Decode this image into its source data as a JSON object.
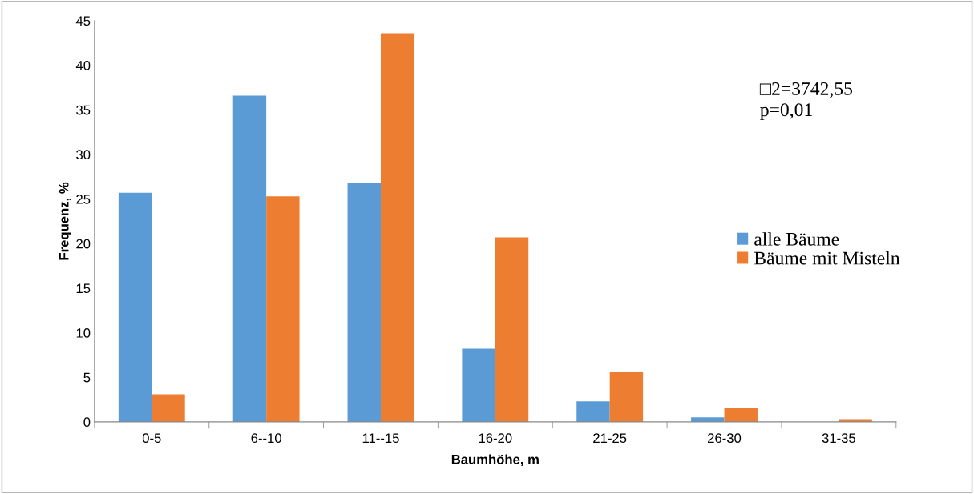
{
  "chart_data": {
    "type": "bar",
    "xlabel": "Baumhöhe, m",
    "ylabel": "Frequenz, %",
    "categories": [
      "0-5",
      "6--10",
      "11--15",
      "16-20",
      "21-25",
      "26-30",
      "31-35"
    ],
    "series": [
      {
        "name": "alle Bäume",
        "color": "#5b9bd5",
        "values": [
          25.7,
          36.6,
          26.8,
          8.2,
          2.3,
          0.5,
          0
        ]
      },
      {
        "name": "Bäume mit Misteln",
        "color": "#ed7d31",
        "values": [
          3.1,
          25.3,
          43.6,
          20.7,
          5.6,
          1.6,
          0.3
        ]
      }
    ],
    "ylim": [
      0,
      45
    ],
    "yticks": [
      0,
      5,
      10,
      15,
      20,
      25,
      30,
      35,
      40,
      45
    ],
    "annotations": [
      "□2=3742,55\np=0,01"
    ],
    "legend": "right",
    "grid": false
  }
}
